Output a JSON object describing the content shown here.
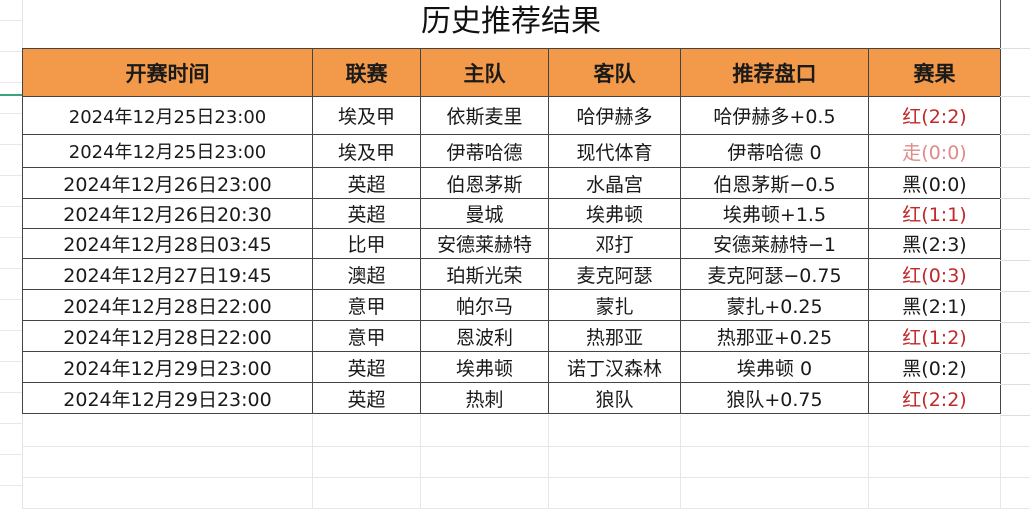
{
  "title": "历史推荐结果",
  "headers": [
    "开赛时间",
    "联赛",
    "主队",
    "客队",
    "推荐盘口",
    "赛果"
  ],
  "colors": {
    "header_bg": "#f39a4a",
    "red": "#c0282a",
    "walk": "#e08a8a",
    "black": "#1a1a1a"
  },
  "rows": [
    {
      "time": "2024年12月25日23:00",
      "league": "埃及甲",
      "home": "依斯麦里",
      "away": "哈伊赫多",
      "pick": "哈伊赫多+0.5",
      "result": "红(2:2)",
      "type": "red"
    },
    {
      "time": "2024年12月25日23:00",
      "league": "埃及甲",
      "home": "伊蒂哈德",
      "away": "现代体育",
      "pick": "伊蒂哈德 0",
      "result": "走(0:0)",
      "type": "walk"
    },
    {
      "time": "2024年12月26日23:00",
      "league": "英超",
      "home": "伯恩茅斯",
      "away": "水晶宫",
      "pick": "伯恩茅斯−0.5",
      "result": "黑(0:0)",
      "type": "black"
    },
    {
      "time": "2024年12月26日20:30",
      "league": "英超",
      "home": "曼城",
      "away": "埃弗顿",
      "pick": "埃弗顿+1.5",
      "result": "红(1:1)",
      "type": "red"
    },
    {
      "time": "2024年12月28日03:45",
      "league": "比甲",
      "home": "安德莱赫特",
      "away": "邓打",
      "pick": "安德莱赫特−1",
      "result": "黑(2:3)",
      "type": "black"
    },
    {
      "time": "2024年12月27日19:45",
      "league": "澳超",
      "home": "珀斯光荣",
      "away": "麦克阿瑟",
      "pick": "麦克阿瑟−0.75",
      "result": "红(0:3)",
      "type": "red"
    },
    {
      "time": "2024年12月28日22:00",
      "league": "意甲",
      "home": "帕尔马",
      "away": "蒙扎",
      "pick": "蒙扎+0.25",
      "result": "黑(2:1)",
      "type": "black"
    },
    {
      "time": "2024年12月28日22:00",
      "league": "意甲",
      "home": "恩波利",
      "away": "热那亚",
      "pick": "热那亚+0.25",
      "result": "红(1:2)",
      "type": "red"
    },
    {
      "time": "2024年12月29日23:00",
      "league": "英超",
      "home": "埃弗顿",
      "away": "诺丁汉森林",
      "pick": "埃弗顿 0",
      "result": "黑(0:2)",
      "type": "black"
    },
    {
      "time": "2024年12月29日23:00",
      "league": "英超",
      "home": "热刺",
      "away": "狼队",
      "pick": "狼队+0.75",
      "result": "红(2:2)",
      "type": "red"
    }
  ]
}
